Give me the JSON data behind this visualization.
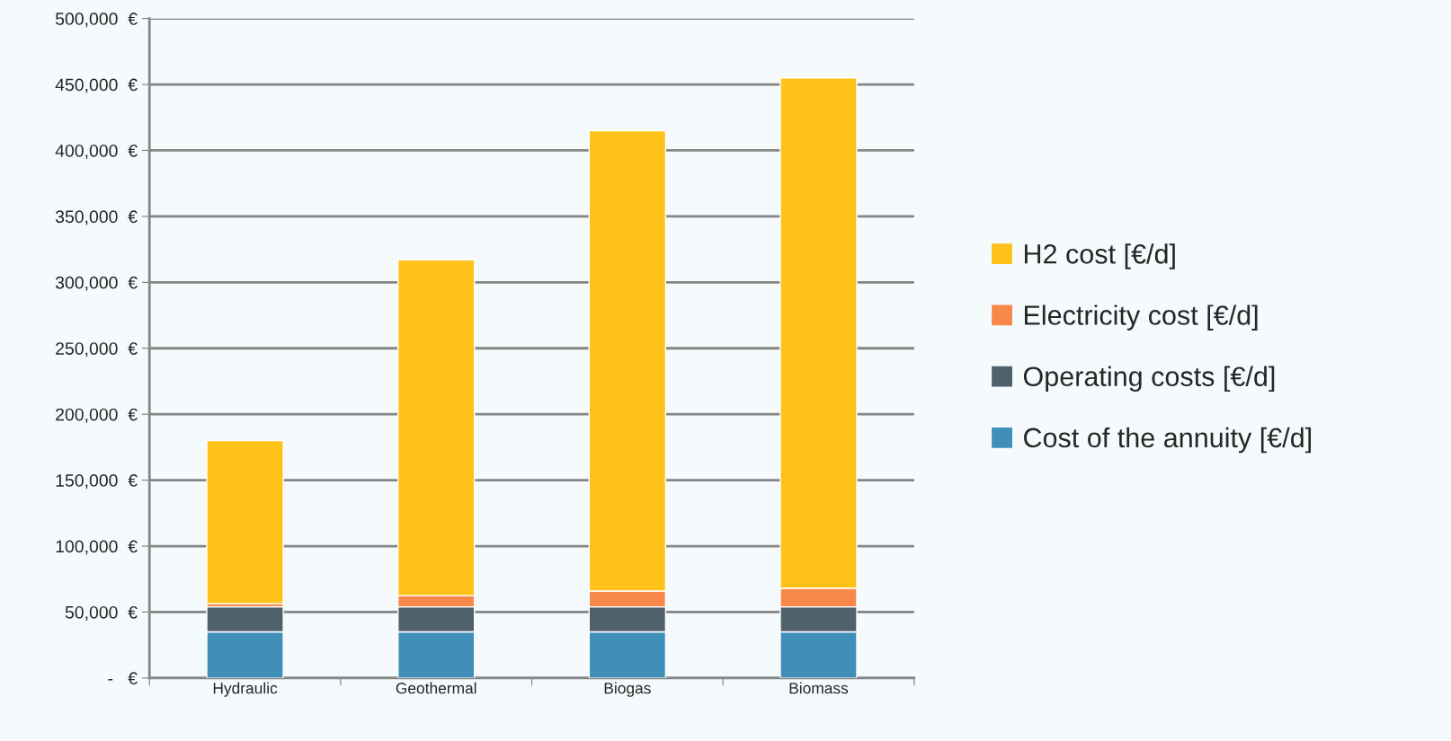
{
  "chart_data": {
    "type": "bar",
    "stacked": true,
    "categories": [
      "Hydraulic",
      "Geothermal",
      "Biogas",
      "Biomass"
    ],
    "series": [
      {
        "name": "Cost of the annuity [€/d]",
        "color": "#3f8fb8",
        "values": [
          35000,
          35000,
          35000,
          35000
        ]
      },
      {
        "name": "Operating costs [€/d]",
        "color": "#4f616b",
        "values": [
          19000,
          19000,
          19000,
          19000
        ]
      },
      {
        "name": "Electricity cost [€/d]",
        "color": "#f9894a",
        "values": [
          2500,
          8500,
          12000,
          14000
        ]
      },
      {
        "name": "H2 cost [€/d]",
        "color": "#ffc21a",
        "values": [
          123500,
          254500,
          349000,
          387000
        ]
      }
    ],
    "ylim": [
      0,
      500000
    ],
    "yticks": [
      {
        "value": 0,
        "label": "-   €"
      },
      {
        "value": 50000,
        "label": "50,000  €"
      },
      {
        "value": 100000,
        "label": "100,000  €"
      },
      {
        "value": 150000,
        "label": "150,000  €"
      },
      {
        "value": 200000,
        "label": "200,000  €"
      },
      {
        "value": 250000,
        "label": "250,000  €"
      },
      {
        "value": 300000,
        "label": "300,000  €"
      },
      {
        "value": 350000,
        "label": "350,000  €"
      },
      {
        "value": 400000,
        "label": "400,000  €"
      },
      {
        "value": 450000,
        "label": "450,000  €"
      },
      {
        "value": 500000,
        "label": "500,000  €"
      }
    ],
    "grid": "y",
    "legend": "right"
  }
}
